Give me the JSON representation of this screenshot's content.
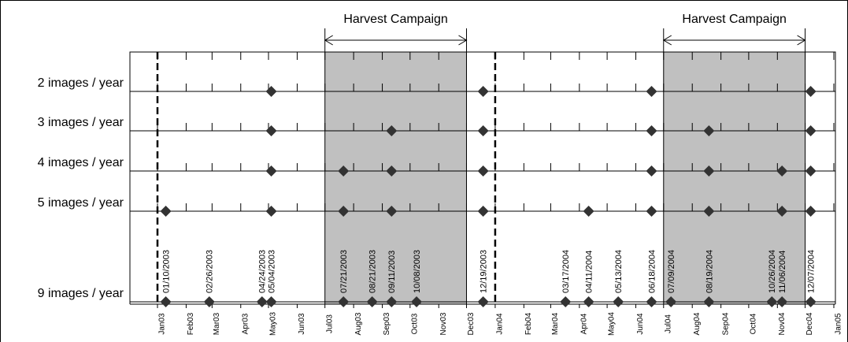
{
  "chart_data": {
    "type": "timeline",
    "xlim": [
      "2003-01",
      "2005-01"
    ],
    "xticks": [
      {
        "value": "2003-01",
        "label": "Jan03"
      },
      {
        "value": "2003-02",
        "label": "Feb03"
      },
      {
        "value": "2003-03",
        "label": "Mar03"
      },
      {
        "value": "2003-04",
        "label": "Apr03"
      },
      {
        "value": "2003-05",
        "label": "May03"
      },
      {
        "value": "2003-06",
        "label": "Jun03"
      },
      {
        "value": "2003-07",
        "label": "Jul03"
      },
      {
        "value": "2003-08",
        "label": "Aug03"
      },
      {
        "value": "2003-09",
        "label": "Sep03"
      },
      {
        "value": "2003-10",
        "label": "Oct03"
      },
      {
        "value": "2003-11",
        "label": "Nov03"
      },
      {
        "value": "2003-12",
        "label": "Dec03"
      },
      {
        "value": "2004-01",
        "label": "Jan04"
      },
      {
        "value": "2004-02",
        "label": "Feb04"
      },
      {
        "value": "2004-03",
        "label": "Mar04"
      },
      {
        "value": "2004-04",
        "label": "Apr04"
      },
      {
        "value": "2004-05",
        "label": "May04"
      },
      {
        "value": "2004-06",
        "label": "Jun04"
      },
      {
        "value": "2004-07",
        "label": "Jul04"
      },
      {
        "value": "2004-08",
        "label": "Aug04"
      },
      {
        "value": "2004-09",
        "label": "Sep04"
      },
      {
        "value": "2004-10",
        "label": "Oct04"
      },
      {
        "value": "2004-11",
        "label": "Nov04"
      },
      {
        "value": "2004-12",
        "label": "Dec04"
      },
      {
        "value": "2005-01",
        "label": "Jan05"
      }
    ],
    "year_lines": [
      "2003-01",
      "2004-01"
    ],
    "campaigns": [
      {
        "label": "Harvest Campaign",
        "start": "2003-07",
        "end": "2003-12"
      },
      {
        "label": "Harvest Campaign",
        "start": "2004-07",
        "end": "2004-12"
      }
    ],
    "color": "#333333",
    "series": [
      {
        "name": "2 images / year",
        "x": [
          "05/04/2003",
          "12/19/2003",
          "06/18/2004",
          "12/07/2004"
        ]
      },
      {
        "name": "3 images / year",
        "x": [
          "05/04/2003",
          "09/11/2003",
          "12/19/2003",
          "06/18/2004",
          "08/19/2004",
          "12/07/2004"
        ]
      },
      {
        "name": "4 images / year",
        "x": [
          "05/04/2003",
          "07/21/2003",
          "09/11/2003",
          "12/19/2003",
          "06/18/2004",
          "08/19/2004",
          "11/06/2004",
          "12/07/2004"
        ]
      },
      {
        "name": "5 images / year",
        "x": [
          "01/10/2003",
          "05/04/2003",
          "07/21/2003",
          "09/11/2003",
          "12/19/2003",
          "04/11/2004",
          "06/18/2004",
          "08/19/2004",
          "11/06/2004",
          "12/07/2004"
        ]
      },
      {
        "name": "9 images / year",
        "show_labels": true,
        "x": [
          "01/10/2003",
          "02/26/2003",
          "04/24/2003",
          "05/04/2003",
          "07/21/2003",
          "08/21/2003",
          "09/11/2003",
          "10/08/2003",
          "12/19/2003",
          "03/17/2004",
          "04/11/2004",
          "05/13/2004",
          "06/18/2004",
          "07/09/2004",
          "08/19/2004",
          "10/26/2004",
          "11/06/2004",
          "12/07/2004"
        ]
      }
    ]
  }
}
